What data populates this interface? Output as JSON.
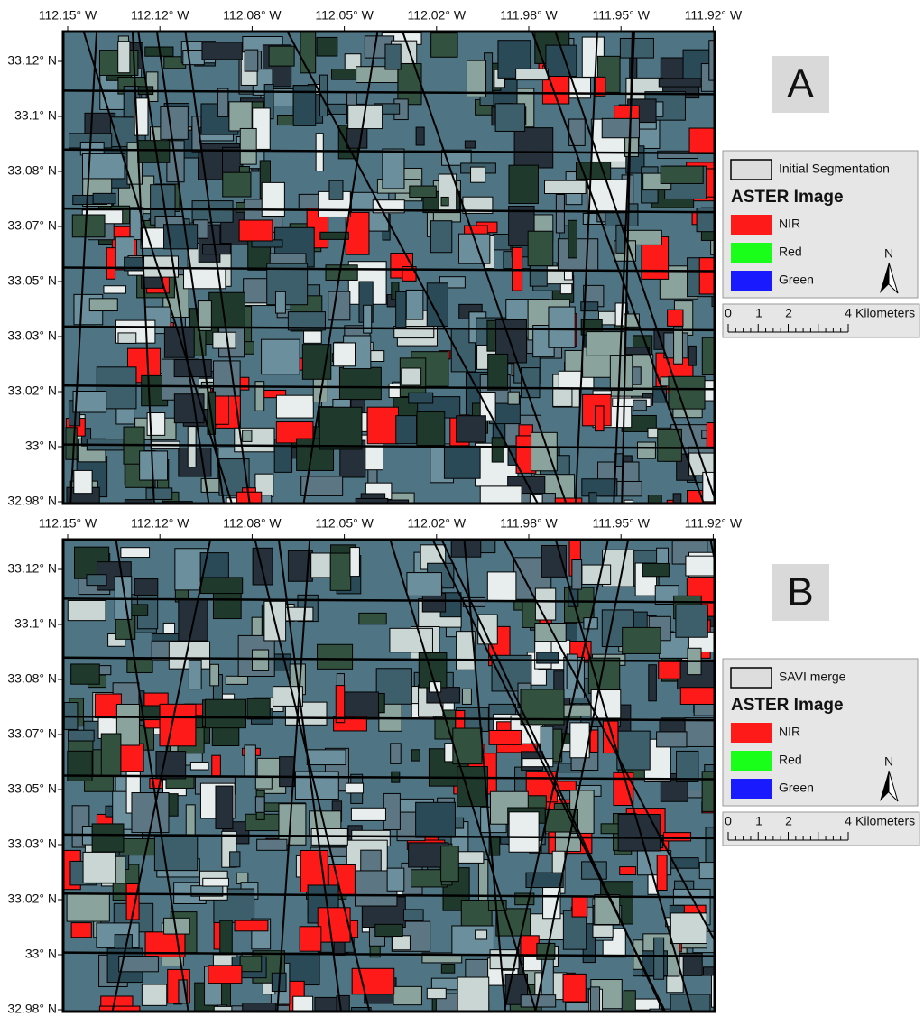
{
  "panels": [
    {
      "label": "A",
      "lon_labels": [
        "112.15° W",
        "112.12° W",
        "112.08° W",
        "112.05° W",
        "112.02° W",
        "111.98° W",
        "111.95° W",
        "111.92° W"
      ],
      "lat_labels": [
        "33.12° N",
        "33.1° N",
        "33.08° N",
        "33.07° N",
        "33.05° N",
        "33.03° N",
        "33.02° N",
        "33° N",
        "32.98° N"
      ],
      "legend": {
        "layer": "Initial Segmentation",
        "title": "ASTER Image",
        "items": [
          "NIR",
          "Red",
          "Green"
        ]
      },
      "north": "N",
      "scale": {
        "ticks": [
          "0",
          "1",
          "2",
          "4"
        ],
        "unit": "Kilometers"
      }
    },
    {
      "label": "B",
      "lon_labels": [
        "112.15° W",
        "112.12° W",
        "112.08° W",
        "112.05° W",
        "112.02° W",
        "111.98° W",
        "111.95° W",
        "111.92° W"
      ],
      "lat_labels": [
        "33.12° N",
        "33.1° N",
        "33.08° N",
        "33.07° N",
        "33.05° N",
        "33.03° N",
        "33.02° N",
        "33° N",
        "32.98° N"
      ],
      "legend": {
        "layer": "SAVI merge",
        "title": "ASTER Image",
        "items": [
          "NIR",
          "Red",
          "Green"
        ]
      },
      "north": "N",
      "scale": {
        "ticks": [
          "0",
          "1",
          "2",
          "4"
        ],
        "unit": "Kilometers"
      }
    }
  ]
}
